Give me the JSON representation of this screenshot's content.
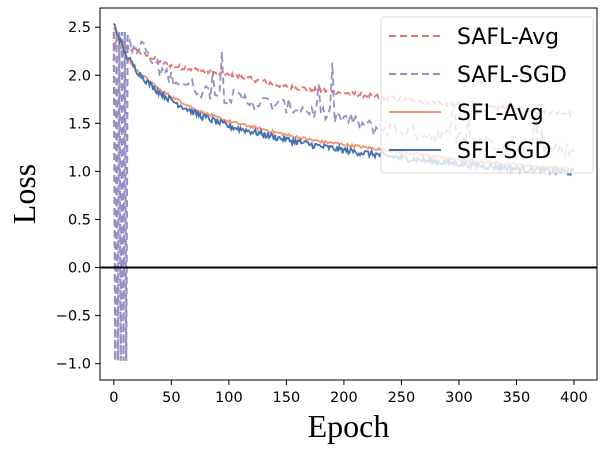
{
  "chart_data": {
    "type": "line",
    "title": "",
    "xlabel": "Epoch",
    "ylabel": "Loss",
    "xlim": [
      -12,
      420
    ],
    "ylim": [
      -1.17,
      2.7
    ],
    "xticks": [
      0,
      50,
      100,
      150,
      200,
      250,
      300,
      350,
      400
    ],
    "xtick_labels": [
      "0",
      "50",
      "100",
      "150",
      "200",
      "250",
      "300",
      "350",
      "400"
    ],
    "yticks": [
      -1.0,
      -0.5,
      0.0,
      0.5,
      1.0,
      1.5,
      2.0,
      2.5
    ],
    "ytick_labels": [
      "−1.0",
      "−0.5",
      "0.0",
      "0.5",
      "1.0",
      "1.5",
      "2.0",
      "2.5"
    ],
    "reference_line_y": 0.0,
    "legend_position": "top-right",
    "series": [
      {
        "name": "SAFL-Avg",
        "color": "#e67373",
        "style": "dashed",
        "x": [
          0,
          5,
          10,
          20,
          30,
          40,
          50,
          75,
          100,
          125,
          150,
          175,
          200,
          250,
          300,
          350,
          400
        ],
        "y": [
          2.33,
          2.36,
          2.3,
          2.25,
          2.2,
          2.14,
          2.1,
          2.05,
          2.0,
          1.95,
          1.88,
          1.85,
          1.82,
          1.75,
          1.7,
          1.65,
          1.6
        ]
      },
      {
        "name": "SAFL-SGD",
        "color": "#9890c4",
        "style": "dashed",
        "x": [
          0,
          3,
          6,
          10,
          15,
          20,
          25,
          30,
          40,
          50,
          75,
          100,
          125,
          150,
          175,
          200,
          225,
          250,
          300,
          350,
          400
        ],
        "y": [
          2.3,
          2.42,
          2.25,
          2.28,
          2.35,
          2.2,
          2.38,
          2.18,
          2.05,
          1.98,
          1.85,
          1.78,
          1.72,
          1.68,
          1.62,
          1.55,
          1.45,
          1.42,
          1.35,
          1.28,
          1.22
        ],
        "oscillation": {
          "x_range": [
            0,
            13
          ],
          "y_range": [
            -0.97,
            2.45
          ]
        }
      },
      {
        "name": "SFL-Avg",
        "color": "#f5956b",
        "style": "solid",
        "x": [
          0,
          5,
          10,
          20,
          30,
          40,
          50,
          75,
          100,
          125,
          150,
          175,
          200,
          250,
          300,
          350,
          400
        ],
        "y": [
          2.5,
          2.35,
          2.2,
          2.05,
          1.95,
          1.85,
          1.78,
          1.62,
          1.52,
          1.45,
          1.38,
          1.32,
          1.28,
          1.2,
          1.12,
          1.07,
          1.02
        ]
      },
      {
        "name": "SFL-SGD",
        "color": "#4472b0",
        "style": "solid",
        "x": [
          0,
          5,
          10,
          20,
          30,
          40,
          50,
          75,
          100,
          125,
          150,
          175,
          200,
          250,
          300,
          350,
          400
        ],
        "y": [
          2.53,
          2.38,
          2.22,
          2.05,
          1.92,
          1.82,
          1.74,
          1.58,
          1.47,
          1.4,
          1.33,
          1.27,
          1.22,
          1.14,
          1.08,
          1.03,
          0.99
        ]
      }
    ]
  }
}
